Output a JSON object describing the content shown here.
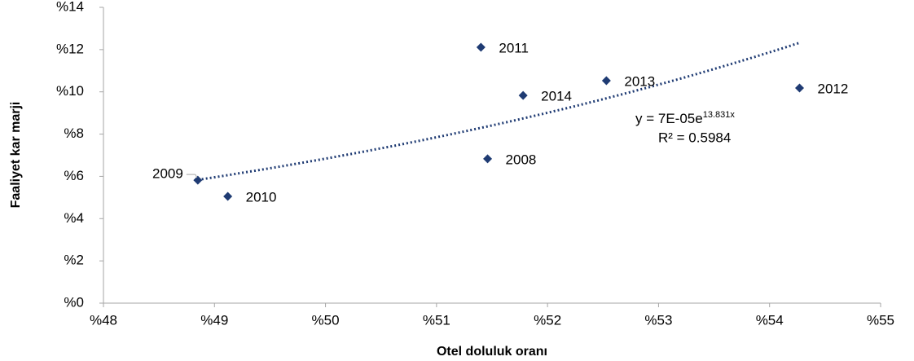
{
  "chart_data": {
    "type": "scatter",
    "xlabel": "Otel doluluk oranı",
    "ylabel": "Faaliyet kar marji",
    "labels": [
      "2009",
      "2010",
      "2011",
      "2014",
      "2008",
      "2013",
      "2012"
    ],
    "x": [
      48.85,
      49.12,
      51.4,
      51.78,
      51.46,
      52.53,
      54.27
    ],
    "values": [
      5.82,
      5.05,
      12.11,
      9.83,
      6.83,
      10.53,
      10.18
    ],
    "color": "#1f3b73",
    "xlim": [
      48,
      55
    ],
    "xticks": [
      {
        "value": 48,
        "label": "%48"
      },
      {
        "value": 49,
        "label": "%49"
      },
      {
        "value": 50,
        "label": "%50"
      },
      {
        "value": 51,
        "label": "%51"
      },
      {
        "value": 52,
        "label": "%52"
      },
      {
        "value": 53,
        "label": "%53"
      },
      {
        "value": 54,
        "label": "%54"
      },
      {
        "value": 55,
        "label": "%55"
      }
    ],
    "ylim": [
      0,
      14
    ],
    "yticks": [
      {
        "value": 0,
        "label": "%0"
      },
      {
        "value": 2,
        "label": "%2"
      },
      {
        "value": 4,
        "label": "%4"
      },
      {
        "value": 6,
        "label": "%6"
      },
      {
        "value": 8,
        "label": "%8"
      },
      {
        "value": 10,
        "label": "%10"
      },
      {
        "value": 12,
        "label": "%12"
      },
      {
        "value": 14,
        "label": "%14"
      }
    ],
    "trendline": "exponential",
    "equation": "y = 7E-05e",
    "exponent": "13.831x",
    "r_squared": "R² = 0.5984"
  }
}
